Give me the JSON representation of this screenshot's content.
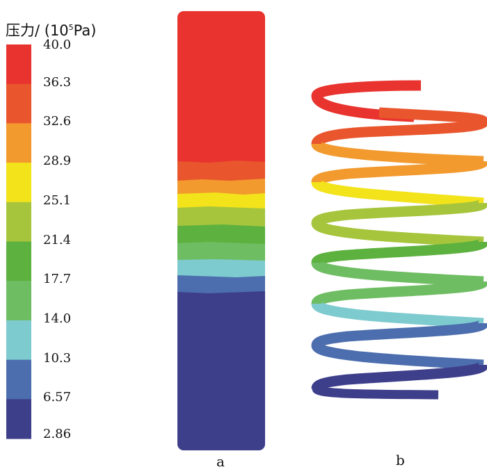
{
  "legend": {
    "title_prefix": "压力/ (10",
    "title_sup": "5",
    "title_suffix": "Pa)",
    "ticks": [
      "40.0",
      "36.3",
      "32.6",
      "28.9",
      "25.1",
      "21.4",
      "17.7",
      "14.0",
      "10.3",
      "6.57",
      "2.86"
    ],
    "colors": [
      "#e8332e",
      "#e9552d",
      "#f29a2e",
      "#f2e31b",
      "#a6c53c",
      "#5db13f",
      "#6fbd62",
      "#7ecbcf",
      "#4c6eae",
      "#3e3f8b"
    ]
  },
  "labels": {
    "a": "a",
    "b": "b"
  }
}
